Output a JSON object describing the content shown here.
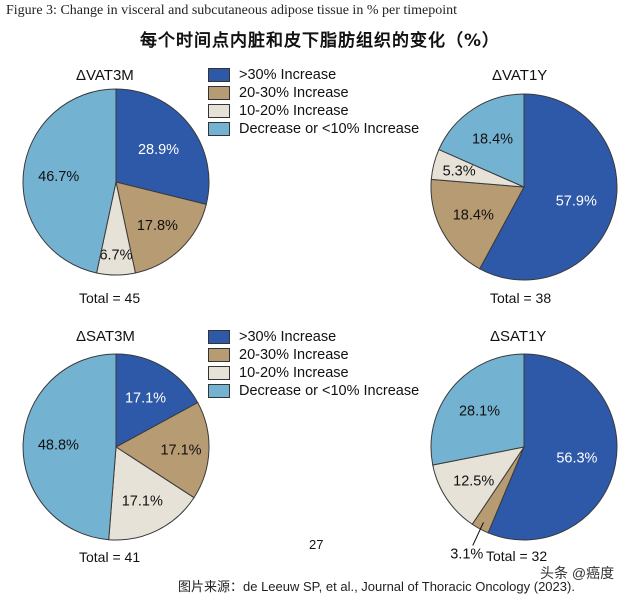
{
  "figure_caption": "Figure 3: Change in visceral and subcutaneous adipose tissue in % per timepoint",
  "main_title": "每个时间点内脏和皮下脂肪组织的变化（%）",
  "legend": [
    {
      "label": ">30% Increase",
      "color": "#2e58a8"
    },
    {
      "label": "20-30% Increase",
      "color": "#b79b72"
    },
    {
      "label": "10-20% Increase",
      "color": "#e7e2d8"
    },
    {
      "label": "Decrease or <10% Increase",
      "color": "#74b2d2"
    }
  ],
  "page_number": "27",
  "source": "图片来源：de Leeuw SP, et al., Journal of Thoracic Oncology (2023).",
  "watermark": "头条 @癌度",
  "chart_data": [
    {
      "type": "pie",
      "title": "ΔVAT3M",
      "total_label": "Total = 45",
      "slices": [
        {
          "label": ">30% Increase",
          "value": 28.9,
          "text": "28.9%"
        },
        {
          "label": "20-30% Increase",
          "value": 17.8,
          "text": "17.8%"
        },
        {
          "label": "10-20% Increase",
          "value": 6.7,
          "text": "6.7%"
        },
        {
          "label": "Decrease or <10% Increase",
          "value": 46.7,
          "text": "46.7%"
        }
      ]
    },
    {
      "type": "pie",
      "title": "ΔVAT1Y",
      "total_label": "Total = 38",
      "slices": [
        {
          "label": ">30% Increase",
          "value": 57.9,
          "text": "57.9%"
        },
        {
          "label": "20-30% Increase",
          "value": 18.4,
          "text": "18.4%"
        },
        {
          "label": "10-20% Increase",
          "value": 5.3,
          "text": "5.3%"
        },
        {
          "label": "Decrease or <10% Increase",
          "value": 18.4,
          "text": "18.4%"
        }
      ]
    },
    {
      "type": "pie",
      "title": "ΔSAT3M",
      "total_label": "Total = 41",
      "slices": [
        {
          "label": ">30% Increase",
          "value": 17.1,
          "text": "17.1%"
        },
        {
          "label": "20-30% Increase",
          "value": 17.1,
          "text": "17.1%"
        },
        {
          "label": "10-20% Increase",
          "value": 17.1,
          "text": "17.1%"
        },
        {
          "label": "Decrease or <10% Increase",
          "value": 48.8,
          "text": "48.8%"
        }
      ]
    },
    {
      "type": "pie",
      "title": "ΔSAT1Y",
      "total_label": "Total = 32",
      "slices": [
        {
          "label": ">30% Increase",
          "value": 56.3,
          "text": "56.3%"
        },
        {
          "label": "20-30% Increase",
          "value": 3.1,
          "text": "3.1%"
        },
        {
          "label": "10-20% Increase",
          "value": 12.5,
          "text": "12.5%"
        },
        {
          "label": "Decrease or <10% Increase",
          "value": 28.1,
          "text": "28.1%"
        }
      ]
    }
  ]
}
